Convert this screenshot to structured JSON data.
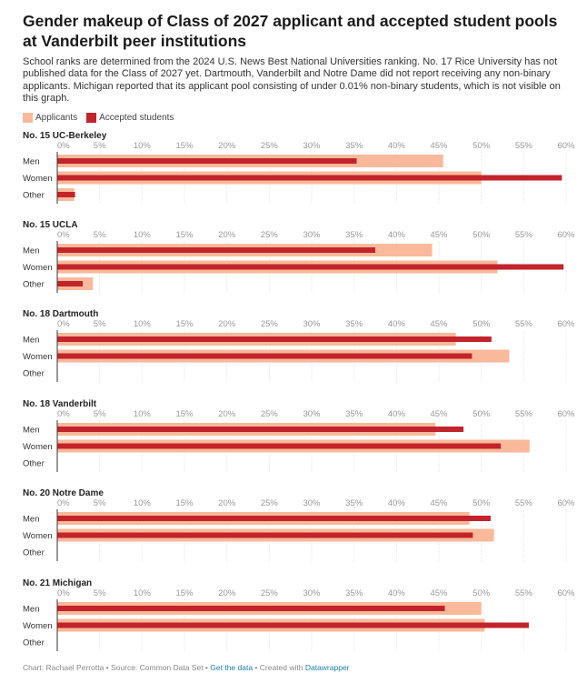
{
  "title": "Gender makeup of Class of 2027 applicant and accepted student pools at Vanderbilt peer institutions",
  "description": "School ranks are determined from the 2024 U.S. News Best National Universities ranking. No. 17 Rice University has not published data for the Class of 2027 yet. Dartmouth, Vanderbilt and Notre Dame did not report receiving any non-binary applicants. Michigan reported that its applicant pool consisting of under 0.01% non-binary students, which is not visible on this graph.",
  "legend": {
    "applicants_label": "Applicants",
    "accepted_label": "Accepted students",
    "applicants_color": "#f9b99a",
    "accepted_color": "#c3232a"
  },
  "footer": {
    "credit": "Chart: Rachael Perrotta • Source: Common Data Set • ",
    "get_data": "Get the data",
    "created": " • Created with ",
    "tool": "Datawrapper"
  },
  "chart_data": {
    "type": "bar",
    "orientation": "horizontal",
    "categories": [
      "Men",
      "Women",
      "Other"
    ],
    "xlim": [
      0,
      60
    ],
    "x_ticks": [
      "0%",
      "5%",
      "10%",
      "15%",
      "20%",
      "25%",
      "30%",
      "35%",
      "40%",
      "45%",
      "50%",
      "55%",
      "60%"
    ],
    "grid": true,
    "panels": [
      {
        "title": "No. 15 UC-Berkeley",
        "series": [
          {
            "name": "Applicants",
            "values": [
              45.5,
              50.0,
              2.0
            ]
          },
          {
            "name": "Accepted students",
            "values": [
              35.3,
              59.5,
              2.1
            ]
          }
        ]
      },
      {
        "title": "No. 15 UCLA",
        "series": [
          {
            "name": "Applicants",
            "values": [
              44.2,
              51.9,
              4.2
            ]
          },
          {
            "name": "Accepted students",
            "values": [
              37.5,
              59.7,
              3.0
            ]
          }
        ]
      },
      {
        "title": "No. 18 Dartmouth",
        "series": [
          {
            "name": "Applicants",
            "values": [
              47.0,
              53.3,
              0
            ]
          },
          {
            "name": "Accepted students",
            "values": [
              51.2,
              48.9,
              0
            ]
          }
        ]
      },
      {
        "title": "No. 18 Vanderbilt",
        "series": [
          {
            "name": "Applicants",
            "values": [
              44.6,
              55.7,
              0
            ]
          },
          {
            "name": "Accepted students",
            "values": [
              47.9,
              52.3,
              0
            ]
          }
        ]
      },
      {
        "title": "No. 20 Notre Dame",
        "series": [
          {
            "name": "Applicants",
            "values": [
              48.6,
              51.5,
              0
            ]
          },
          {
            "name": "Accepted students",
            "values": [
              51.1,
              49.0,
              0
            ]
          }
        ]
      },
      {
        "title": "No. 21 Michigan",
        "series": [
          {
            "name": "Applicants",
            "values": [
              50.0,
              50.4,
              0
            ]
          },
          {
            "name": "Accepted students",
            "values": [
              45.7,
              55.6,
              0
            ]
          }
        ]
      }
    ]
  }
}
